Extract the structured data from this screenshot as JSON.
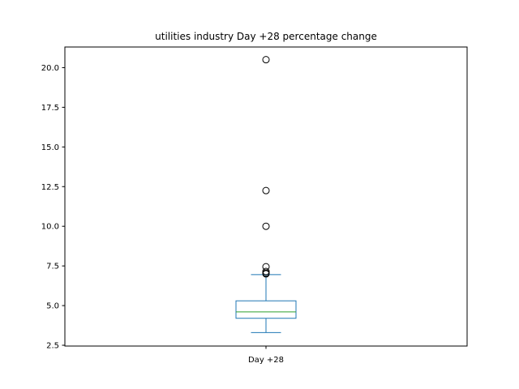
{
  "chart_data": {
    "type": "box",
    "title": "utilities industry Day +28 percentage change",
    "xlabel": "",
    "ylabel": "",
    "categories": [
      "Day +28"
    ],
    "ylim": [
      2.45,
      21.3
    ],
    "yticks": [
      2.5,
      5.0,
      7.5,
      10.0,
      12.5,
      15.0,
      17.5,
      20.0
    ],
    "ytick_labels": [
      "2.5",
      "5.0",
      "7.5",
      "10.0",
      "12.5",
      "15.0",
      "17.5",
      "20.0"
    ],
    "grid": false,
    "boxes": [
      {
        "category": "Day +28",
        "whisker_low": 3.3,
        "q1": 4.2,
        "median": 4.6,
        "q3": 5.3,
        "whisker_high": 6.95,
        "outliers": [
          7.0,
          7.05,
          7.15,
          7.45,
          10.0,
          12.25,
          20.5
        ]
      }
    ],
    "colors": {
      "box": "#1f77b4",
      "median": "#2ca02c",
      "outlier": "#000000",
      "axes": "#000000"
    }
  }
}
